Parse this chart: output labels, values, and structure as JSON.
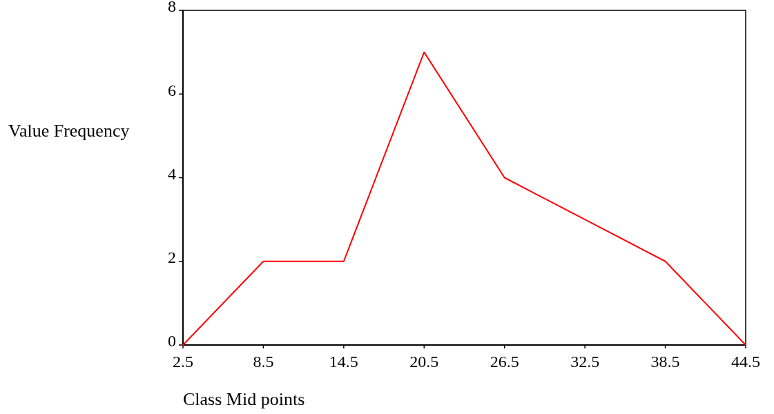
{
  "chart_data": {
    "type": "line",
    "xlabel": "Class Mid points",
    "ylabel": "Value Frequency",
    "x": [
      2.5,
      8.5,
      14.5,
      20.5,
      26.5,
      32.5,
      38.5,
      44.5
    ],
    "series": [
      {
        "color": "#ff0000",
        "values": [
          0,
          2,
          2,
          7,
          4,
          3,
          2,
          0
        ]
      }
    ],
    "xlim": [
      2.5,
      44.5
    ],
    "xticks": [
      2.5,
      8.5,
      14.5,
      20.5,
      26.5,
      32.5,
      38.5,
      44.5
    ],
    "ylim": [
      0,
      8
    ],
    "yticks": [
      0,
      2,
      4,
      6,
      8
    ],
    "grid": false,
    "marker": "none",
    "line_style": "solid"
  }
}
